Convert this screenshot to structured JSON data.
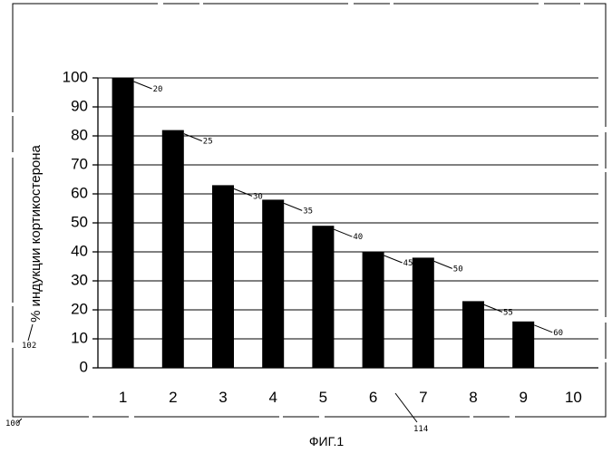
{
  "chart_data": {
    "type": "bar",
    "categories": [
      "1",
      "2",
      "3",
      "4",
      "5",
      "6",
      "7",
      "8",
      "9",
      "10"
    ],
    "values": [
      100,
      82,
      63,
      58,
      49,
      40,
      38,
      23,
      16,
      null
    ],
    "bar_labels": [
      "20",
      "25",
      "30",
      "35",
      "40",
      "45",
      "50",
      "55",
      "60",
      ""
    ],
    "ylabel": "% индукции кортикостерона",
    "xlabel": "",
    "title": "",
    "ylim": [
      0,
      100
    ],
    "yticks": [
      0,
      10,
      20,
      30,
      40,
      50,
      60,
      70,
      80,
      90,
      100
    ],
    "grid": true,
    "legend": "none"
  },
  "figure": {
    "caption": "ФИГ.1",
    "ref_axis_label": "102",
    "ref_frame": "100",
    "ref_xaxis": "114"
  }
}
